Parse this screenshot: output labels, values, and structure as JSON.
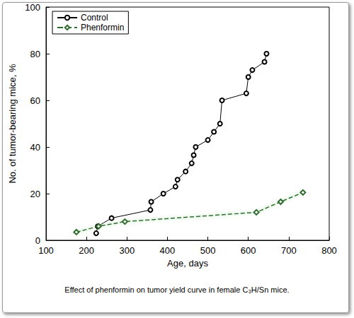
{
  "chart_data": {
    "type": "line",
    "title": "Effect of phenformin on tumor yield curve in female C₃H/Sn mice.",
    "x_label": "Age, days",
    "y_label": "No. of tumor-bearing mice, %",
    "xlim": [
      100,
      800
    ],
    "xticks": [
      100,
      200,
      300,
      400,
      500,
      600,
      700,
      800
    ],
    "ylim": [
      0,
      100
    ],
    "yticks": [
      0,
      20,
      40,
      60,
      80,
      100
    ],
    "grid": false,
    "legend": "upper left",
    "series": [
      {
        "name": "Control",
        "color": "#000000",
        "marker": "circle",
        "line_style": "solid",
        "x": [
          224,
          228,
          262,
          358,
          360,
          390,
          420,
          425,
          445,
          460,
          465,
          470,
          500,
          515,
          530,
          535,
          595,
          600,
          610,
          640,
          645
        ],
        "values": [
          3,
          6,
          9.5,
          13,
          16.5,
          20,
          23,
          26,
          29.5,
          33,
          36.5,
          40,
          43,
          46.5,
          50,
          60,
          63,
          70,
          73,
          76.5,
          80
        ]
      },
      {
        "name": "Phenformin",
        "color": "#2e6b2e",
        "marker": "diamond",
        "line_style": "dashed",
        "x": [
          175,
          230,
          295,
          620,
          680,
          735
        ],
        "values": [
          3.5,
          6,
          8,
          12,
          16.5,
          20.5
        ]
      }
    ]
  }
}
